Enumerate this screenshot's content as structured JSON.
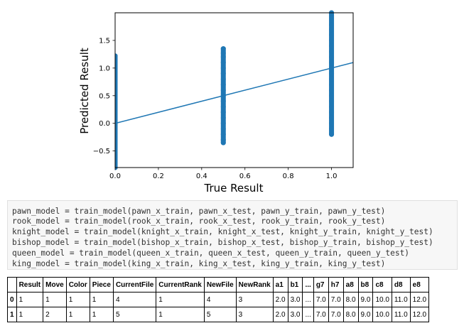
{
  "chart_data": {
    "type": "scatter",
    "xlabel": "True Result",
    "ylabel": "Predicted Result",
    "xlim": [
      0.0,
      1.1
    ],
    "ylim": [
      -0.8,
      2.0
    ],
    "xticks": [
      "0.0",
      "0.2",
      "0.4",
      "0.6",
      "0.8",
      "1.0"
    ],
    "xtick_values": [
      0.0,
      0.2,
      0.4,
      0.6,
      0.8,
      1.0
    ],
    "yticks": [
      "−0.5",
      "0.0",
      "0.5",
      "1.0",
      "1.5"
    ],
    "ytick_values": [
      -0.5,
      0.0,
      0.5,
      1.0,
      1.5
    ],
    "series": [
      {
        "color": "#1f77b4",
        "points": [
          {
            "x": 0.0,
            "y": -0.8
          },
          {
            "x": 0.0,
            "y": -0.6
          },
          {
            "x": 0.0,
            "y": -0.4
          },
          {
            "x": 0.0,
            "y": -0.2
          },
          {
            "x": 0.0,
            "y": 0.0
          },
          {
            "x": 0.0,
            "y": 0.2
          },
          {
            "x": 0.0,
            "y": 0.4
          },
          {
            "x": 0.0,
            "y": 0.6
          },
          {
            "x": 0.0,
            "y": 0.8
          },
          {
            "x": 0.0,
            "y": 1.0
          },
          {
            "x": 0.0,
            "y": 1.15
          },
          {
            "x": 0.0,
            "y": 1.22
          },
          {
            "x": 0.5,
            "y": -0.35
          },
          {
            "x": 0.5,
            "y": -0.3
          },
          {
            "x": 0.5,
            "y": -0.2
          },
          {
            "x": 0.5,
            "y": -0.1
          },
          {
            "x": 0.5,
            "y": 0.0
          },
          {
            "x": 0.5,
            "y": 0.1
          },
          {
            "x": 0.5,
            "y": 0.2
          },
          {
            "x": 0.5,
            "y": 0.3
          },
          {
            "x": 0.5,
            "y": 0.4
          },
          {
            "x": 0.5,
            "y": 0.5
          },
          {
            "x": 0.5,
            "y": 0.6
          },
          {
            "x": 0.5,
            "y": 0.7
          },
          {
            "x": 0.5,
            "y": 0.8
          },
          {
            "x": 0.5,
            "y": 0.9
          },
          {
            "x": 0.5,
            "y": 1.0
          },
          {
            "x": 0.5,
            "y": 1.1
          },
          {
            "x": 0.5,
            "y": 1.2
          },
          {
            "x": 0.5,
            "y": 1.27
          },
          {
            "x": 0.5,
            "y": 1.35
          },
          {
            "x": 1.0,
            "y": -0.2
          },
          {
            "x": 1.0,
            "y": -0.1
          },
          {
            "x": 1.0,
            "y": 0.0
          },
          {
            "x": 1.0,
            "y": 0.1
          },
          {
            "x": 1.0,
            "y": 0.2
          },
          {
            "x": 1.0,
            "y": 0.3
          },
          {
            "x": 1.0,
            "y": 0.4
          },
          {
            "x": 1.0,
            "y": 0.5
          },
          {
            "x": 1.0,
            "y": 0.6
          },
          {
            "x": 1.0,
            "y": 0.7
          },
          {
            "x": 1.0,
            "y": 0.8
          },
          {
            "x": 1.0,
            "y": 0.9
          },
          {
            "x": 1.0,
            "y": 1.0
          },
          {
            "x": 1.0,
            "y": 1.1
          },
          {
            "x": 1.0,
            "y": 1.2
          },
          {
            "x": 1.0,
            "y": 1.3
          },
          {
            "x": 1.0,
            "y": 1.4
          },
          {
            "x": 1.0,
            "y": 1.5
          },
          {
            "x": 1.0,
            "y": 1.6
          },
          {
            "x": 1.0,
            "y": 1.7
          },
          {
            "x": 1.0,
            "y": 1.78
          },
          {
            "x": 1.0,
            "y": 2.0
          }
        ]
      }
    ],
    "fit_line": {
      "color": "#1f77b4",
      "x": [
        0.0,
        1.1
      ],
      "y": [
        0.0,
        1.1
      ]
    }
  },
  "code": {
    "lines": [
      "pawn_model = train_model(pawn_x_train, pawn_x_test, pawn_y_train, pawn_y_test)",
      "rook_model = train_model(rook_x_train, rook_x_test, rook_y_train, rook_y_test)",
      "knight_model = train_model(knight_x_train, knight_x_test, knight_y_train, knight_y_test)",
      "bishop_model = train_model(bishop_x_train, bishop_x_test, bishop_y_train, bishop_y_test)",
      "queen_model = train_model(queen_x_train, queen_x_test, queen_y_train, queen_y_test)",
      "king_model = train_model(king_x_train, king_x_test, king_y_train, king_y_test)"
    ]
  },
  "dataframe": {
    "columns": [
      "",
      "Result",
      "Move",
      "Color",
      "Piece",
      "CurrentFile",
      "CurrentRank",
      "NewFile",
      "NewRank",
      "a1",
      "b1",
      "...",
      "g7",
      "h7",
      "a8",
      "b8",
      "c8",
      "d8",
      "e8"
    ],
    "rows": [
      [
        "0",
        "1",
        "1",
        "1",
        "1",
        "4",
        "1",
        "4",
        "3",
        "2.0",
        "3.0",
        "...",
        "7.0",
        "7.0",
        "8.0",
        "9.0",
        "10.0",
        "11.0",
        "12.0"
      ],
      [
        "1",
        "1",
        "2",
        "1",
        "1",
        "5",
        "1",
        "5",
        "3",
        "2.0",
        "3.0",
        "...",
        "7.0",
        "7.0",
        "8.0",
        "9.0",
        "10.0",
        "11.0",
        "12.0"
      ]
    ]
  }
}
